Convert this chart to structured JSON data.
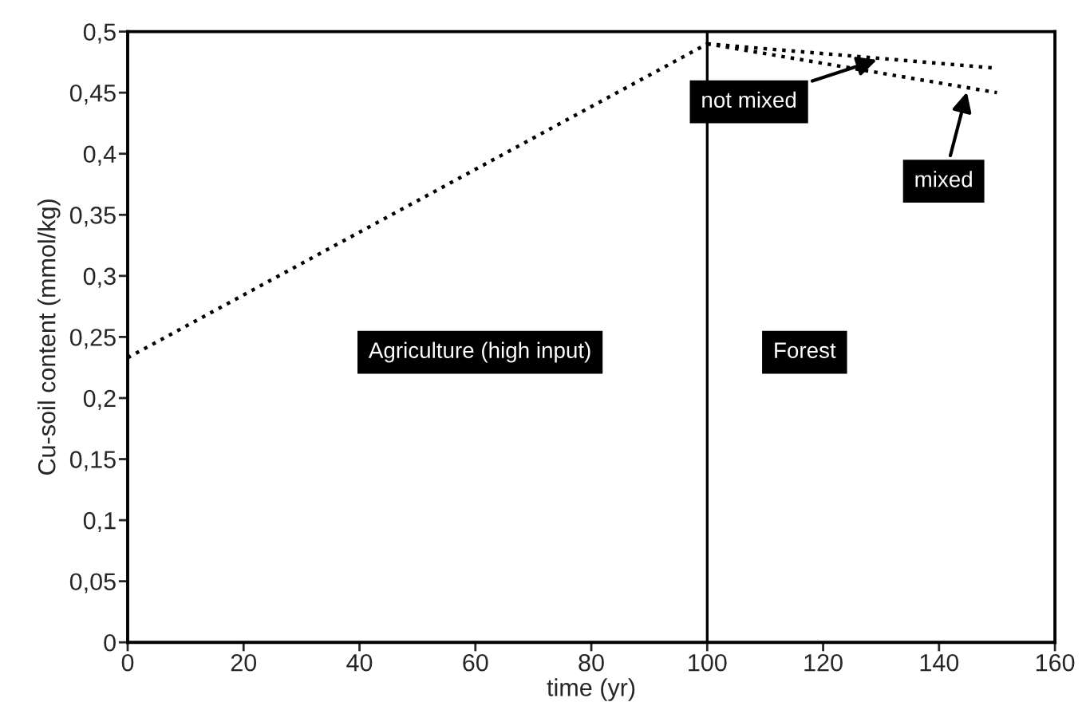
{
  "chart_data": {
    "type": "line",
    "xlabel": "time (yr)",
    "ylabel": "Cu-soil content (mmol/kg)",
    "xlim": [
      0,
      160
    ],
    "xticks": [
      0,
      20,
      40,
      60,
      80,
      100,
      120,
      140,
      160
    ],
    "ylim": [
      0,
      0.5
    ],
    "yticks": [
      0,
      {
        "value": 0.05,
        "label": "0,05"
      },
      {
        "value": 0.1,
        "label": "0,1"
      },
      {
        "value": 0.15,
        "label": "0,15"
      },
      {
        "value": 0.2,
        "label": "0,2"
      },
      {
        "value": 0.25,
        "label": "0,25"
      },
      {
        "value": 0.3,
        "label": "0,3"
      },
      {
        "value": 0.35,
        "label": "0,35"
      },
      {
        "value": 0.4,
        "label": "0,4"
      },
      {
        "value": 0.45,
        "label": "0,45"
      },
      {
        "value": 0.5,
        "label": "0,5"
      }
    ],
    "series": [
      {
        "color": "#000000",
        "x": [
          0,
          100
        ],
        "values": [
          0.233,
          0.49
        ]
      },
      {
        "name": "not mixed",
        "color": "#000000",
        "x": [
          100,
          150
        ],
        "values": [
          0.49,
          0.47
        ]
      },
      {
        "name": "mixed",
        "color": "#000000",
        "x": [
          100,
          150
        ],
        "values": [
          0.49,
          0.45
        ]
      }
    ],
    "ref_lines": [
      {
        "axis": "x",
        "value": 100,
        "color": "#000000",
        "line_style": "solid"
      }
    ],
    "annotations": [
      "Agriculture (high input)",
      "Forest"
    ],
    "line_style": "dotted",
    "marker": "none",
    "grid": false,
    "legend": false
  }
}
